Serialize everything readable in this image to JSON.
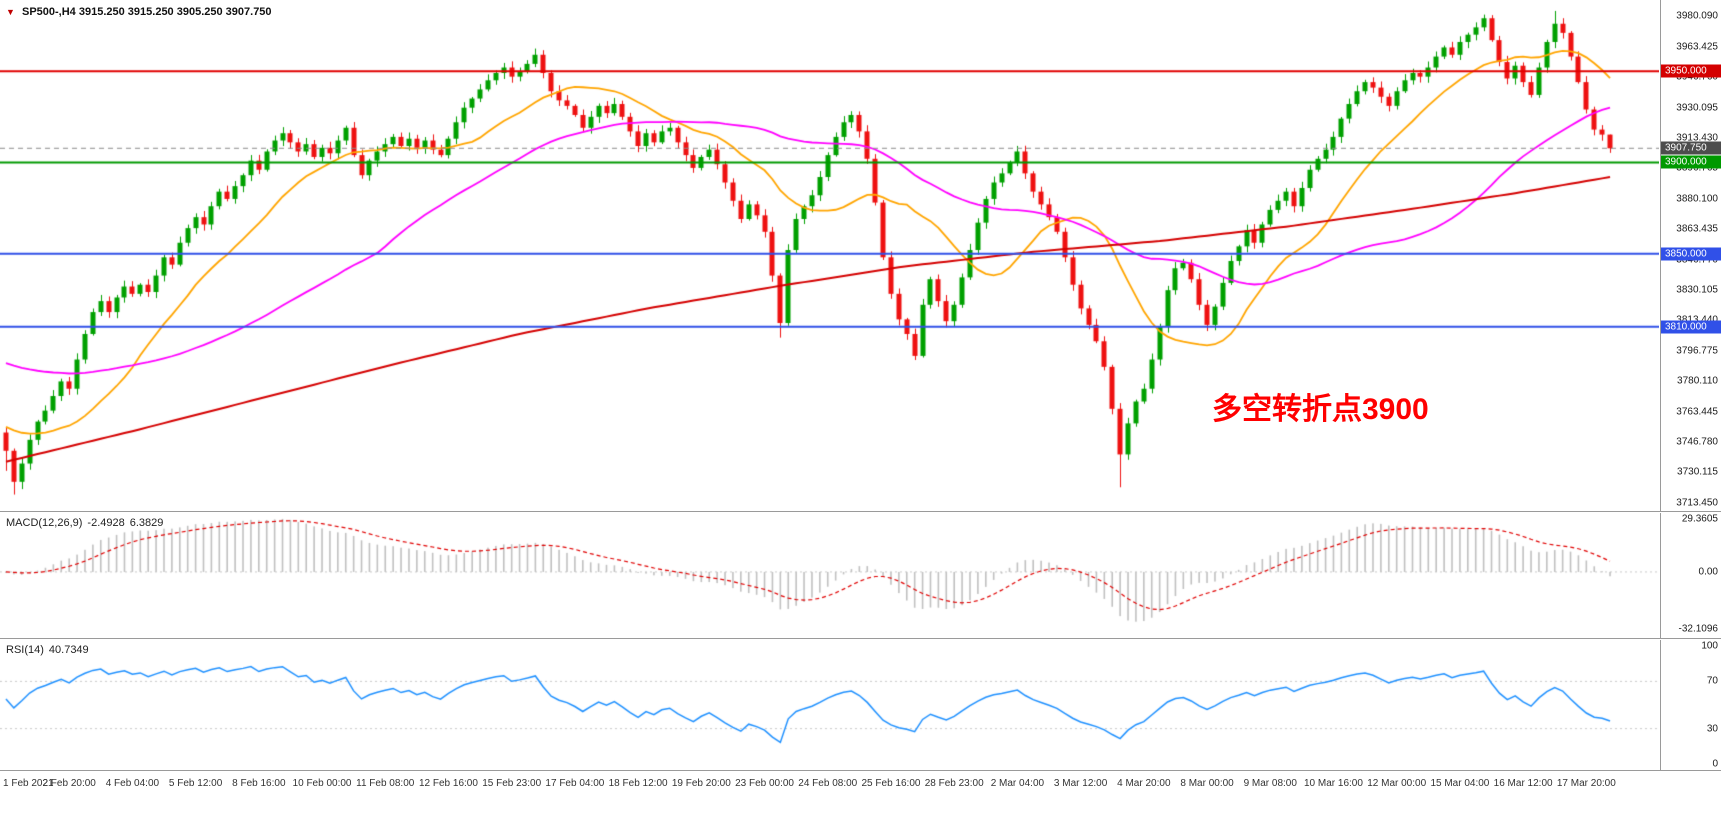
{
  "window": {
    "symbol_timeframe": "SP500-,H4",
    "ohlc_text": "3915.250 3915.250 3905.250 3907.750"
  },
  "annotation": {
    "text": "多空转折点3900",
    "color": "#FF0000"
  },
  "chart_data": {
    "type": "candlestick",
    "symbol": "SP500-",
    "timeframe": "H4",
    "title": "SP500-,H4 3915.250 3915.250 3905.250 3907.750",
    "ylim": [
      3709,
      3989
    ],
    "first_open": 3752,
    "last_bar_ohlc": [
      3915.25,
      3915.25,
      3905.25,
      3907.75
    ],
    "current_price": 3907.75,
    "closes": [
      3742,
      3725,
      3735,
      3748,
      3758,
      3764,
      3772,
      3780,
      3776,
      3792,
      3806,
      3818,
      3824,
      3818,
      3826,
      3832,
      3828,
      3833,
      3829,
      3838,
      3848,
      3844,
      3856,
      3864,
      3870,
      3866,
      3876,
      3884,
      3880,
      3887,
      3893,
      3901,
      3896,
      3906,
      3912,
      3916,
      3911,
      3906,
      3910,
      3903,
      3908,
      3905,
      3912,
      3919,
      3904,
      3893,
      3901,
      3906,
      3910,
      3914,
      3909,
      3913,
      3908,
      3912,
      3907,
      3904,
      3913,
      3922,
      3930,
      3935,
      3940,
      3945,
      3949,
      3952,
      3947,
      3950,
      3954,
      3959,
      3949,
      3939,
      3934,
      3931,
      3926,
      3919,
      3925,
      3931,
      3927,
      3932,
      3925,
      3917,
      3909,
      3916,
      3911,
      3917,
      3919,
      3911,
      3904,
      3897,
      3903,
      3907,
      3899,
      3889,
      3879,
      3869,
      3877,
      3871,
      3862,
      3838,
      3812,
      3852,
      3869,
      3876,
      3882,
      3892,
      3904,
      3914,
      3922,
      3926,
      3917,
      3902,
      3878,
      3848,
      3828,
      3814,
      3806,
      3794,
      3822,
      3836,
      3824,
      3813,
      3822,
      3837,
      3852,
      3867,
      3880,
      3889,
      3894,
      3900,
      3906,
      3894,
      3884,
      3877,
      3870,
      3862,
      3848,
      3833,
      3820,
      3811,
      3802,
      3788,
      3765,
      3740,
      3757,
      3769,
      3776,
      3792,
      3810,
      3830,
      3842,
      3845,
      3836,
      3822,
      3811,
      3821,
      3834,
      3846,
      3854,
      3863,
      3856,
      3866,
      3874,
      3879,
      3884,
      3876,
      3886,
      3896,
      3902,
      3907,
      3914,
      3924,
      3932,
      3939,
      3944,
      3941,
      3936,
      3931,
      3939,
      3945,
      3949,
      3947,
      3952,
      3958,
      3963,
      3959,
      3966,
      3970,
      3974,
      3979,
      3967,
      3955,
      3946,
      3953,
      3944,
      3937,
      3952,
      3966,
      3976,
      3971,
      3958,
      3944,
      3929,
      3918,
      3915.25,
      3907.75
    ],
    "wick_overrides": {
      "0": [
        null,
        3731
      ],
      "1": [
        null,
        3718
      ],
      "2": [
        null,
        3721
      ],
      "98": [
        null,
        3804
      ],
      "141": [
        null,
        3722
      ],
      "187": [
        3981,
        null
      ],
      "196": [
        3983,
        null
      ],
      "203": [
        3915.25,
        3905.25
      ]
    },
    "colors": {
      "up": "#00A000",
      "down": "#EE1111",
      "ma_fast": "#FFA500",
      "ma_medium": "#FF00FF",
      "ma_slow": "#D40000",
      "macd_hist": "#C0C0C0",
      "macd_signal": "#E00000",
      "rsi": "#1E90FF",
      "current_line": "#8a8a8a"
    },
    "moving_averages": {
      "fast": {
        "period": 16,
        "prepad": 3756,
        "color": "#FFA500"
      },
      "medium": {
        "period": 48,
        "prepad": 3791,
        "color": "#FF00FF"
      },
      "slow": {
        "color": "#D40000",
        "anchors": [
          [
            0,
            3736
          ],
          [
            0.08,
            3753
          ],
          [
            0.16,
            3771
          ],
          [
            0.24,
            3789
          ],
          [
            0.32,
            3806
          ],
          [
            0.4,
            3820
          ],
          [
            0.48,
            3832
          ],
          [
            0.56,
            3843
          ],
          [
            0.64,
            3851
          ],
          [
            0.72,
            3857
          ],
          [
            0.8,
            3865
          ],
          [
            0.88,
            3875
          ],
          [
            0.94,
            3883
          ],
          [
            1,
            3892
          ]
        ]
      }
    },
    "hlines": [
      {
        "price": 3950,
        "color": "#E00000"
      },
      {
        "price": 3900,
        "color": "#009900"
      },
      {
        "price": 3850,
        "color": "#3050E8"
      },
      {
        "price": 3810,
        "color": "#3050E8"
      }
    ],
    "price_axis": {
      "ticks": [
        "3980.090",
        "3963.425",
        "3946.760",
        "3930.095",
        "3913.430",
        "3896.765",
        "3880.100",
        "3863.435",
        "3846.770",
        "3830.105",
        "3813.440",
        "3796.775",
        "3780.110",
        "3763.445",
        "3746.780",
        "3730.115",
        "3713.450"
      ],
      "badges": [
        {
          "text": "3950.000",
          "value": 3950,
          "bg": "#D40000"
        },
        {
          "text": "3907.750",
          "value": 3907.75,
          "bg": "#4D4D4D"
        },
        {
          "text": "3900.000",
          "value": 3900,
          "bg": "#009900"
        },
        {
          "text": "3850.000",
          "value": 3850,
          "bg": "#3050E8"
        },
        {
          "text": "3810.000",
          "value": 3810,
          "bg": "#3050E8"
        }
      ]
    },
    "x_labels": [
      "1 Feb 2021",
      "2 Feb 20:00",
      "4 Feb 04:00",
      "5 Feb 12:00",
      "8 Feb 16:00",
      "10 Feb 00:00",
      "11 Feb 08:00",
      "12 Feb 16:00",
      "15 Feb 23:00",
      "17 Feb 04:00",
      "18 Feb 12:00",
      "19 Feb 20:00",
      "23 Feb 00:00",
      "24 Feb 08:00",
      "25 Feb 16:00",
      "28 Feb 23:00",
      "2 Mar 04:00",
      "3 Mar 12:00",
      "4 Mar 20:00",
      "8 Mar 00:00",
      "9 Mar 08:00",
      "10 Mar 16:00",
      "12 Mar 00:00",
      "15 Mar 04:00",
      "16 Mar 12:00",
      "17 Mar 20:00"
    ],
    "indicators": {
      "macd": {
        "label": "MACD(12,26,9)",
        "value_main": "-2.4928",
        "value_signal": "6.3829",
        "params": [
          12,
          26,
          9
        ],
        "vlim": [
          -37,
          33
        ],
        "axis_ticks": [
          {
            "t": "29.3605",
            "v": 29.3605
          },
          {
            "t": "0.00",
            "v": 0
          },
          {
            "t": "-32.1096",
            "v": -32.1096
          }
        ]
      },
      "rsi": {
        "label": "RSI(14)",
        "value": "40.7349",
        "period": 14,
        "levels": [
          70,
          30
        ],
        "axis_ticks": [
          {
            "t": "100",
            "v": 100
          },
          {
            "t": "70",
            "v": 70
          },
          {
            "t": "30",
            "v": 30
          },
          {
            "t": "0",
            "v": 0
          }
        ]
      }
    }
  }
}
